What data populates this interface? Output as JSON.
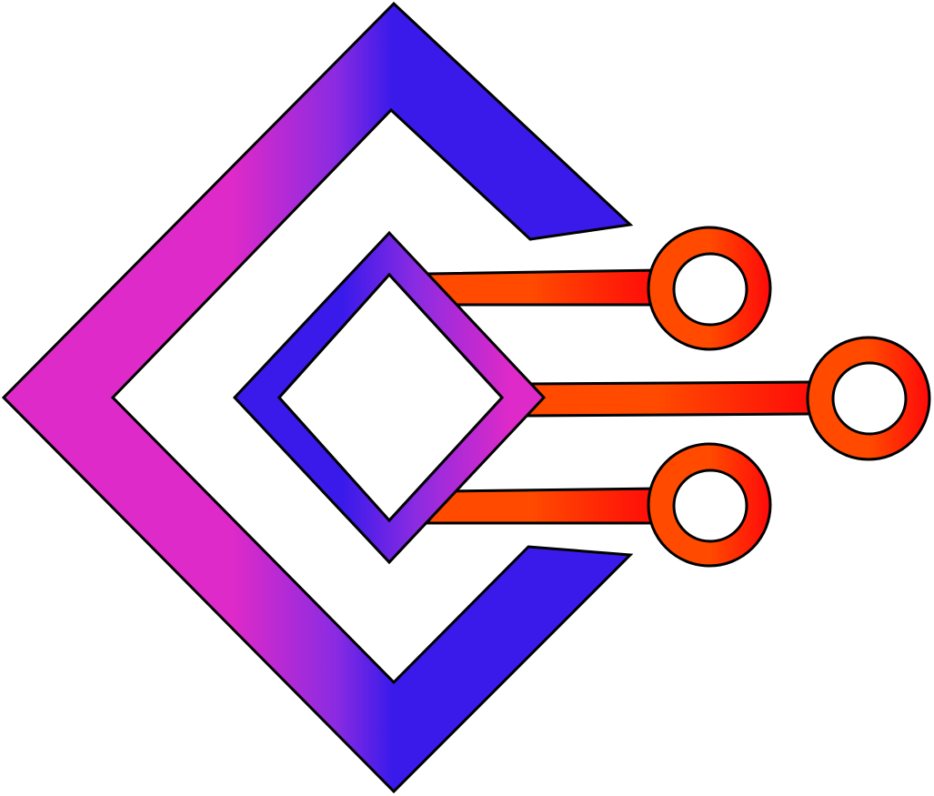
{
  "logo": {
    "shape": "chevron-with-inner-diamond-and-circuit-traces",
    "colors": {
      "magenta": "#DD2AC8",
      "purple": "#8A2BE2",
      "blue": "#3A1AEA",
      "orange": "#FF4A00",
      "red": "#FF0A0A",
      "outline": "#000000",
      "background": "#FFFFFF"
    },
    "trace_count": 3
  }
}
